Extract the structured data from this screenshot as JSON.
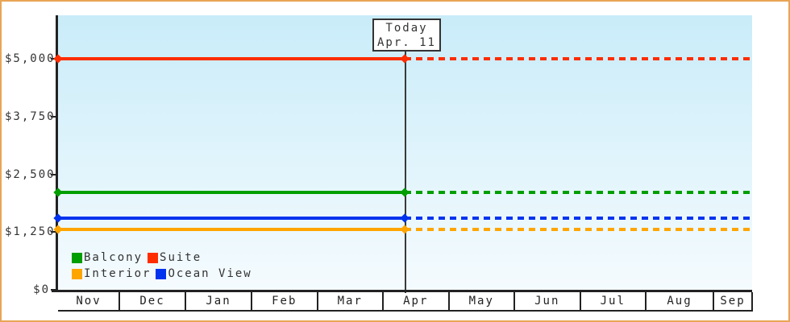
{
  "chart_data": {
    "type": "line",
    "title": "",
    "x_categories": [
      "Nov",
      "Dec",
      "Jan",
      "Feb",
      "Mar",
      "Apr",
      "May",
      "Jun",
      "Jul",
      "Aug",
      "Sep"
    ],
    "y_ticks": [
      0,
      1250,
      2500,
      3750,
      5000
    ],
    "y_tick_labels": [
      "$0",
      "$1,250",
      "$2,500",
      "$3,750",
      "$5,000"
    ],
    "ylim": [
      0,
      5000
    ],
    "grid": false,
    "legend_position": "bottom-left inside plot",
    "series": [
      {
        "name": "Suite",
        "color": "#FF2D00",
        "value": 5000
      },
      {
        "name": "Balcony",
        "color": "#009E00",
        "value": 2100
      },
      {
        "name": "Ocean View",
        "color": "#0033EE",
        "value": 1550
      },
      {
        "name": "Interior",
        "color": "#FFA500",
        "value": 1300
      }
    ],
    "annotation": {
      "line1": "Today",
      "line2": "Apr. 11"
    },
    "notes": "Each cabin-category price is a constant horizontal line across Nov-Sep. Lines are solid from Nov to today (Apr. 11, marked by a vertical line and diamond markers) and dotted after today. Values estimated from the y-axis: Suite $5,000, Balcony ~$2,100, Ocean View ~$1,550, Interior ~$1,300."
  },
  "legend": {
    "items": [
      {
        "label": "Balcony",
        "color": "#009E00"
      },
      {
        "label": "Suite",
        "color": "#FF2D00"
      },
      {
        "label": "Interior",
        "color": "#FFA500"
      },
      {
        "label": "Ocean View",
        "color": "#0033EE"
      }
    ]
  },
  "axes": {
    "x_labels": [
      "Nov",
      "Dec",
      "Jan",
      "Feb",
      "Mar",
      "Apr",
      "May",
      "Jun",
      "Jul",
      "Aug",
      "Sep"
    ],
    "y_labels": [
      "$0",
      "$1,250",
      "$2,500",
      "$3,750",
      "$5,000"
    ]
  },
  "colors": {
    "frame_border": "#E8A556",
    "axis": "#222222",
    "text": "#333333",
    "plot_bg_top": "#C9ECF9",
    "plot_bg_bottom": "#F5FBFE",
    "today_line": "#3a3a3a"
  }
}
